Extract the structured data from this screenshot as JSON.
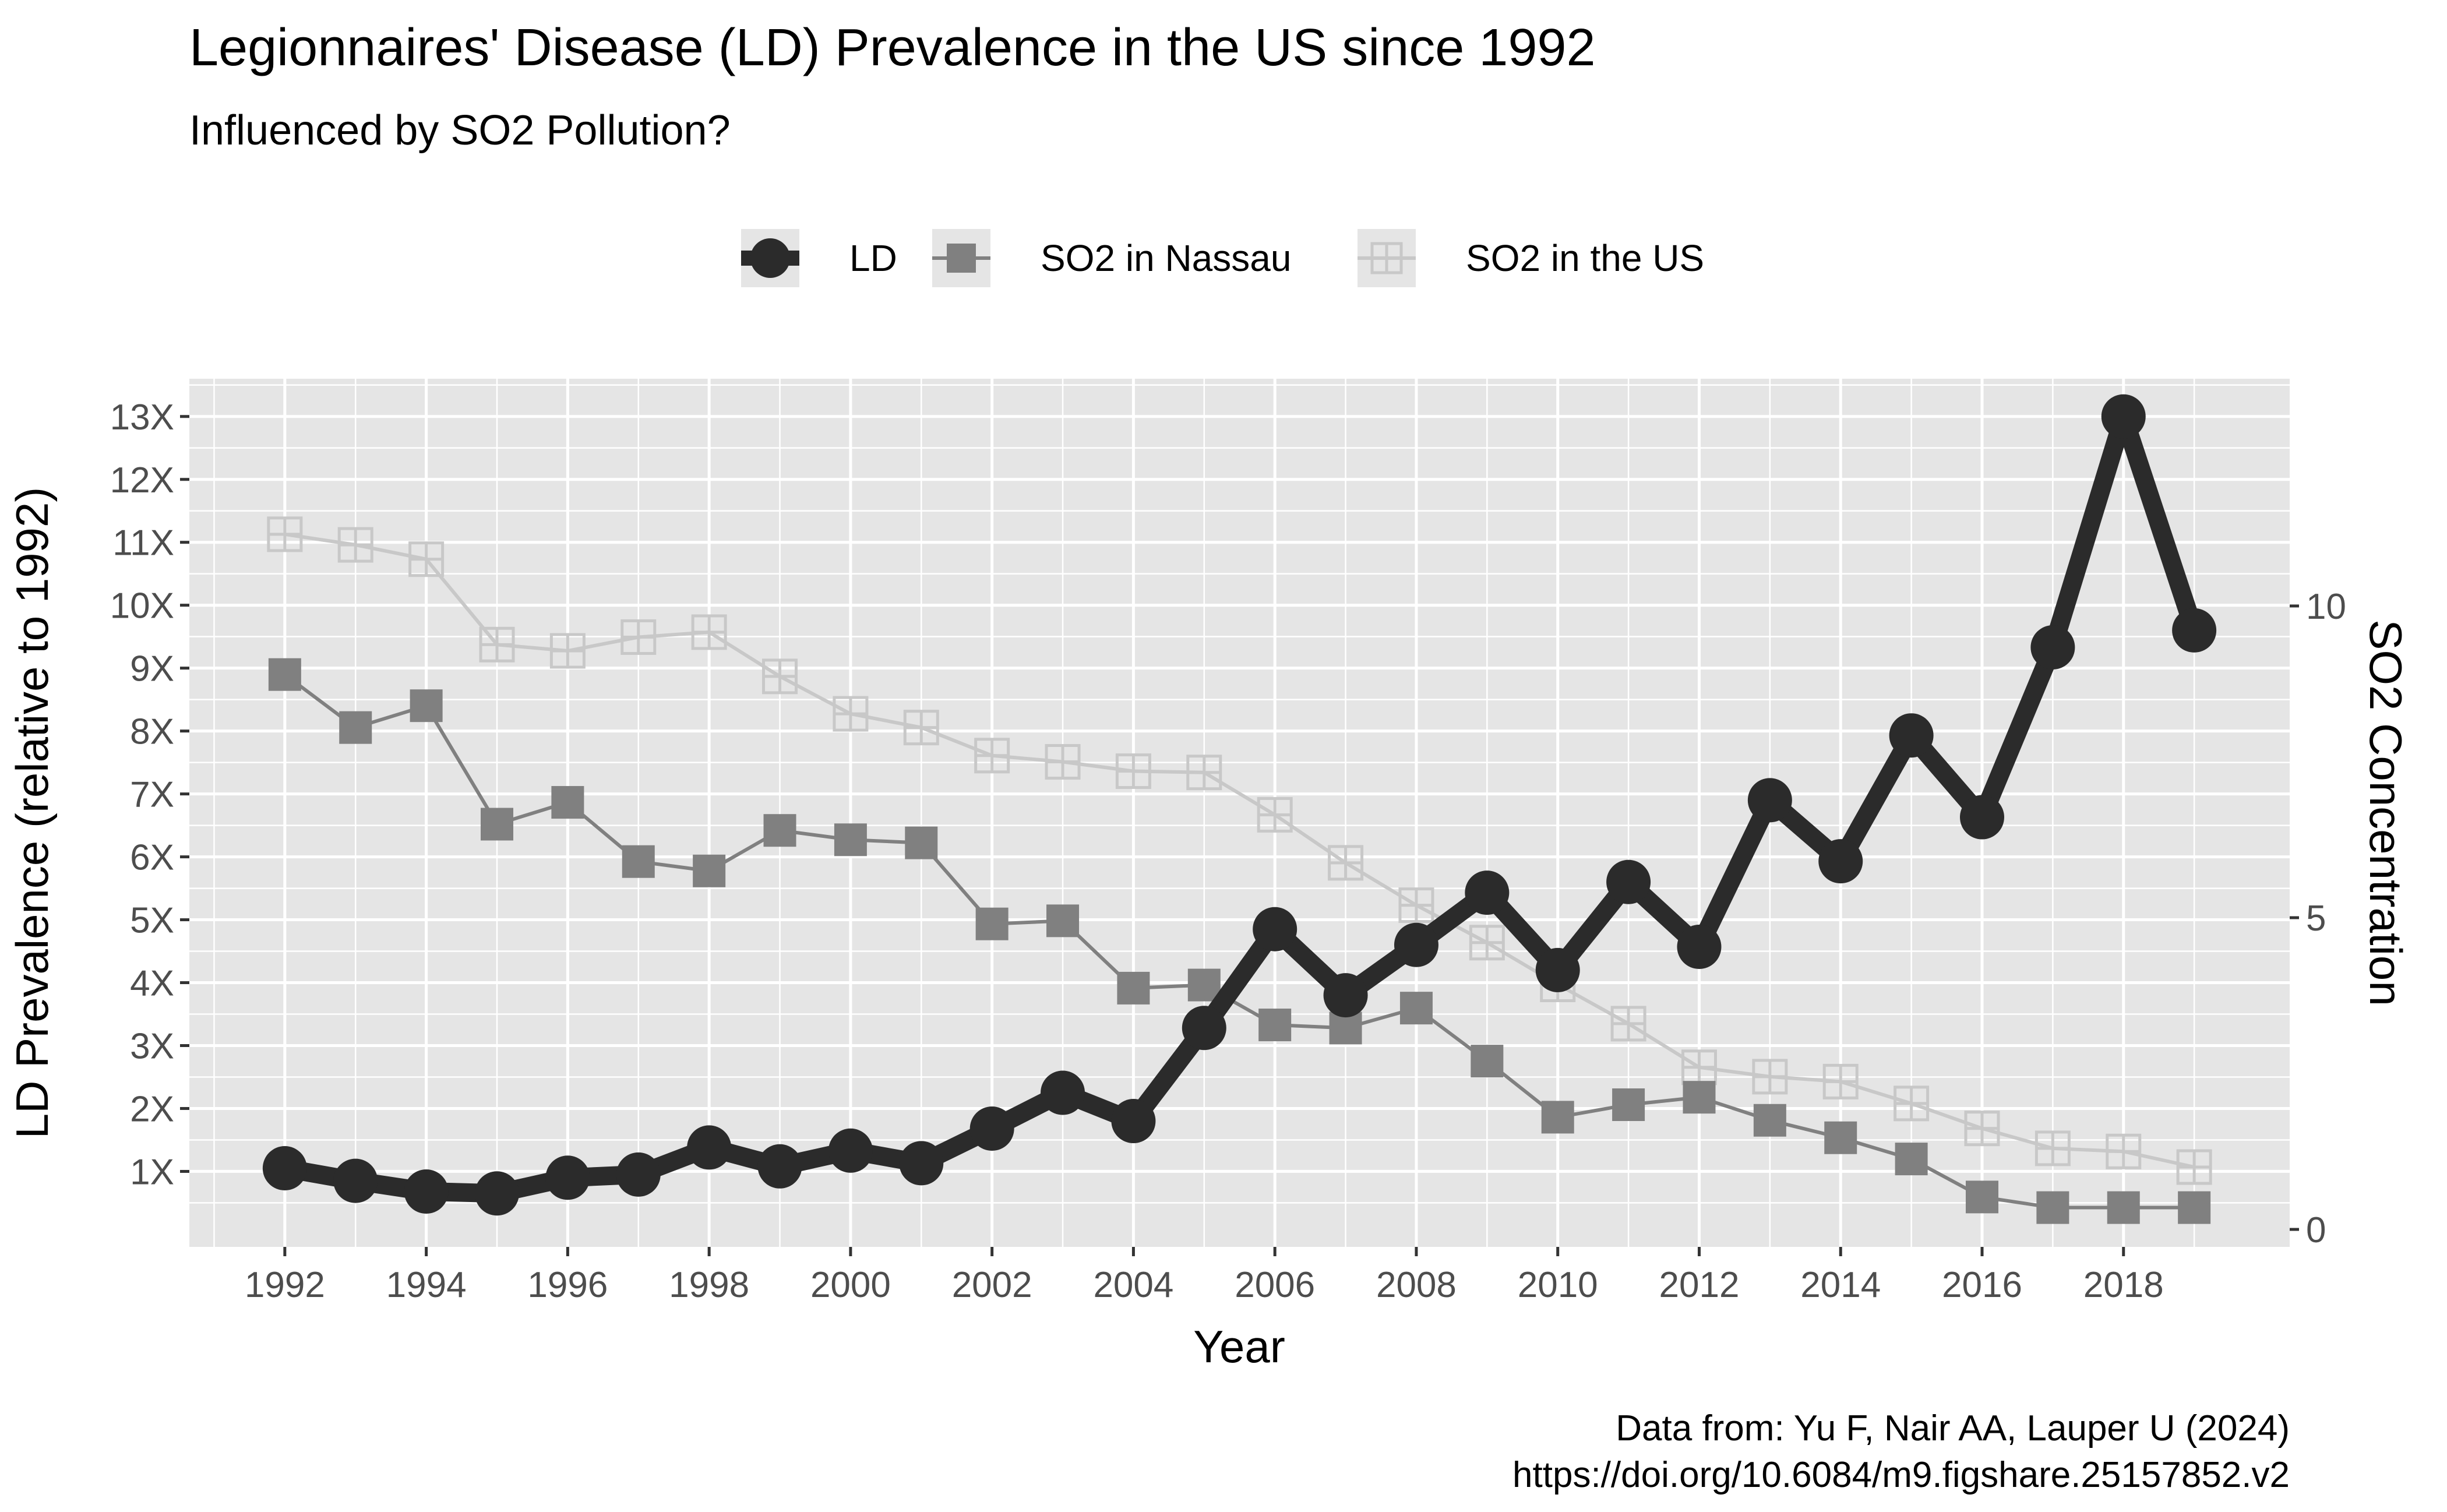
{
  "title": "Legionnaires' Disease (LD) Prevalence in the US since 1992",
  "subtitle": "Influenced by SO2 Pollution?",
  "caption_line1": "Data from: Yu F, Nair AA, Lauper U (2024)",
  "caption_line2": "https://doi.org/10.6084/m9.figshare.25157852.v2",
  "colors": {
    "panel_bg": "#e5e5e5",
    "grid": "#ffffff",
    "ld": "#2b2b2b",
    "so2_nassau": "#808080",
    "so2_us": "#c8c8c8",
    "text": "#000000",
    "tick_text": "#4d4d4d",
    "legend_key_bg": "#e5e5e5"
  },
  "chart_data": {
    "type": "line",
    "xlabel": "Year",
    "ylabel": "LD Prevalence (relative to 1992)",
    "y2label": "SO2 Concentration",
    "x": [
      1992,
      1993,
      1994,
      1995,
      1996,
      1997,
      1998,
      1999,
      2000,
      2001,
      2002,
      2003,
      2004,
      2005,
      2006,
      2007,
      2008,
      2009,
      2010,
      2011,
      2012,
      2013,
      2014,
      2015,
      2016,
      2017,
      2018,
      2019
    ],
    "xlim": [
      1990.65,
      2020.35
    ],
    "x_ticks": [
      1992,
      1994,
      1996,
      1998,
      2000,
      2002,
      2004,
      2006,
      2008,
      2010,
      2012,
      2014,
      2016,
      2018
    ],
    "ylim": [
      -0.2,
      13.6
    ],
    "y_ticks": [
      1,
      2,
      3,
      4,
      5,
      6,
      7,
      8,
      9,
      10,
      11,
      12,
      13
    ],
    "y_tick_labels": [
      "1X",
      "2X",
      "3X",
      "4X",
      "5X",
      "6X",
      "7X",
      "8X",
      "9X",
      "10X",
      "11X",
      "12X",
      "13X"
    ],
    "y2_ticks": [
      0,
      5,
      10
    ],
    "y2_tick_labels": [
      "0",
      "5",
      "10"
    ],
    "grid": true,
    "legend_position": "top",
    "series": [
      {
        "name": "LD",
        "axis": "left",
        "marker": "circle",
        "values": [
          1.05,
          0.85,
          0.68,
          0.65,
          0.9,
          0.95,
          1.38,
          1.08,
          1.33,
          1.13,
          1.68,
          2.25,
          1.8,
          3.28,
          4.85,
          3.8,
          4.6,
          5.43,
          4.2,
          5.6,
          4.57,
          6.9,
          5.93,
          7.93,
          6.63,
          9.33,
          13.0,
          9.6
        ]
      },
      {
        "name": "SO2 in Nassau",
        "axis": "right",
        "marker": "square",
        "values": [
          8.9,
          8.05,
          8.4,
          6.5,
          6.85,
          5.9,
          5.75,
          6.4,
          6.25,
          6.2,
          4.9,
          4.95,
          3.87,
          3.92,
          3.28,
          3.23,
          3.55,
          2.7,
          1.8,
          2.0,
          2.12,
          1.75,
          1.47,
          1.13,
          0.52,
          0.35,
          0.35,
          0.35
        ]
      },
      {
        "name": "SO2 in the US",
        "axis": "right",
        "marker": "crossed-square",
        "values": [
          11.15,
          10.98,
          10.75,
          9.38,
          9.28,
          9.5,
          9.58,
          8.87,
          8.27,
          8.05,
          7.6,
          7.5,
          7.35,
          7.33,
          6.65,
          5.88,
          5.2,
          4.6,
          3.93,
          3.3,
          2.6,
          2.45,
          2.37,
          2.02,
          1.62,
          1.3,
          1.25,
          1.0
        ]
      }
    ]
  }
}
